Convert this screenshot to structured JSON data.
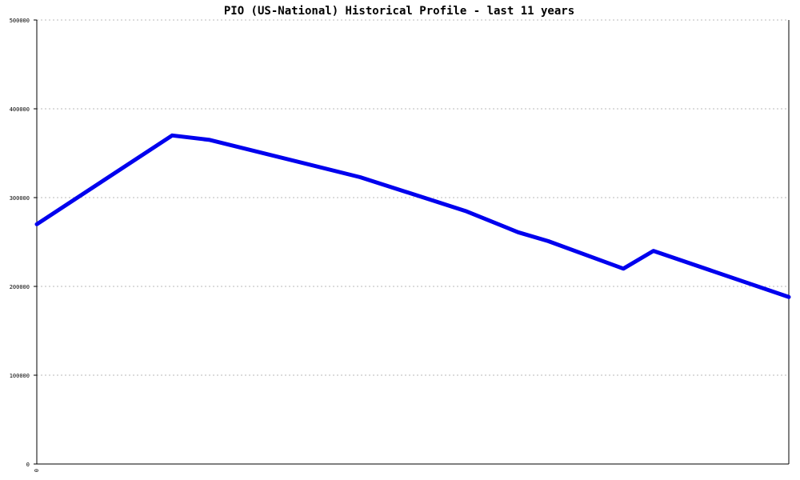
{
  "chart_data": {
    "type": "line",
    "title": "PIO (US-National) Historical Profile - last 11 years",
    "xlabel": "",
    "ylabel": "",
    "ylim": [
      0,
      500000
    ],
    "yticks": [
      0,
      100000,
      200000,
      300000,
      400000,
      500000
    ],
    "ytick_labels": [
      "0",
      "100000",
      "200000",
      "300000",
      "400000",
      "500000"
    ],
    "xtick_labels": [
      "0"
    ],
    "grid": true,
    "legend": "none",
    "colors": {
      "series": "#0000ee",
      "grid": "#b8b8b8",
      "axis": "#000000"
    },
    "series": [
      {
        "values": [
          {
            "x": 0.0,
            "y": 270000
          },
          {
            "x": 0.18,
            "y": 370000
          },
          {
            "x": 0.23,
            "y": 365000
          },
          {
            "x": 0.43,
            "y": 323000
          },
          {
            "x": 0.57,
            "y": 285000
          },
          {
            "x": 0.64,
            "y": 261000
          },
          {
            "x": 0.68,
            "y": 251000
          },
          {
            "x": 0.78,
            "y": 220000
          },
          {
            "x": 0.82,
            "y": 240000
          },
          {
            "x": 1.0,
            "y": 188000
          }
        ]
      }
    ]
  }
}
